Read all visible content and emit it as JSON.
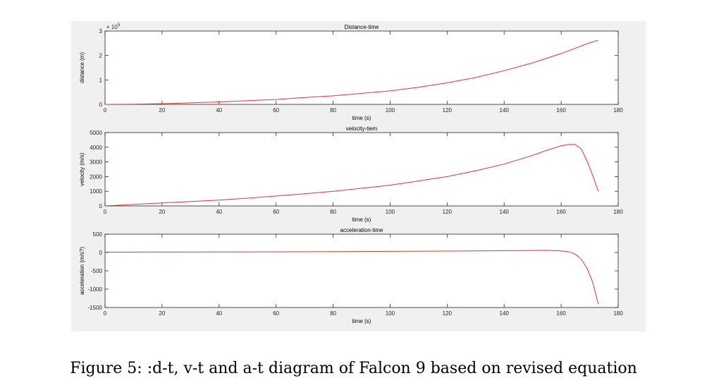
{
  "caption": "Figure 5: :d-t, v-t and a-t diagram of Falcon 9 based on revised equation",
  "colors": {
    "line": "#e8302f",
    "axes": "#262626",
    "panel": "#f0f0f0",
    "plot_bg": "#ffffff"
  },
  "chart_data": [
    {
      "type": "line",
      "title": "Distance-time",
      "xlabel": "time (s)",
      "ylabel": "distance (m)",
      "xlim": [
        0,
        180
      ],
      "ylim": [
        0,
        3
      ],
      "xticks": [
        0,
        20,
        40,
        60,
        80,
        100,
        120,
        140,
        160,
        180
      ],
      "yticks": [
        0,
        1,
        2,
        3
      ],
      "y_exponent_label": "× 10",
      "y_exponent": "5",
      "grid": false,
      "series": [
        {
          "x": [
            0,
            10,
            20,
            30,
            40,
            50,
            60,
            70,
            80,
            90,
            100,
            110,
            120,
            130,
            140,
            150,
            160,
            165,
            170,
            173
          ],
          "y": [
            0,
            0.01,
            0.03,
            0.06,
            0.1,
            0.15,
            0.2,
            0.28,
            0.35,
            0.45,
            0.55,
            0.7,
            0.88,
            1.1,
            1.38,
            1.7,
            2.08,
            2.3,
            2.52,
            2.62
          ]
        }
      ]
    },
    {
      "type": "line",
      "title": "velocity-tiem",
      "xlabel": "time (s)",
      "ylabel": "velocity (m/s)",
      "xlim": [
        0,
        180
      ],
      "ylim": [
        0,
        5000
      ],
      "xticks": [
        0,
        20,
        40,
        60,
        80,
        100,
        120,
        140,
        160,
        180
      ],
      "yticks": [
        0,
        1000,
        2000,
        3000,
        4000,
        5000
      ],
      "grid": false,
      "series": [
        {
          "x": [
            0,
            10,
            20,
            30,
            40,
            50,
            60,
            70,
            80,
            90,
            100,
            110,
            120,
            130,
            140,
            150,
            155,
            160,
            163,
            165,
            167,
            169,
            171,
            173
          ],
          "y": [
            0,
            100,
            200,
            300,
            400,
            530,
            680,
            830,
            1000,
            1200,
            1420,
            1700,
            2000,
            2400,
            2850,
            3450,
            3800,
            4100,
            4200,
            4180,
            3900,
            3100,
            2100,
            1000
          ]
        }
      ]
    },
    {
      "type": "line",
      "title": "acceleration-time",
      "xlabel": "time (s)",
      "ylabel": "acceleration (m/s?)",
      "xlim": [
        0,
        180
      ],
      "ylim": [
        -1500,
        500
      ],
      "xticks": [
        0,
        20,
        40,
        60,
        80,
        100,
        120,
        140,
        160,
        180
      ],
      "yticks": [
        -1500,
        -1000,
        -500,
        0,
        500
      ],
      "grid": false,
      "series": [
        {
          "x": [
            0,
            20,
            40,
            60,
            80,
            100,
            120,
            140,
            150,
            155,
            160,
            163,
            165,
            167,
            169,
            171,
            172,
            173
          ],
          "y": [
            10,
            12,
            14,
            18,
            24,
            30,
            38,
            48,
            55,
            58,
            45,
            15,
            -50,
            -180,
            -420,
            -800,
            -1100,
            -1400
          ]
        }
      ]
    }
  ]
}
